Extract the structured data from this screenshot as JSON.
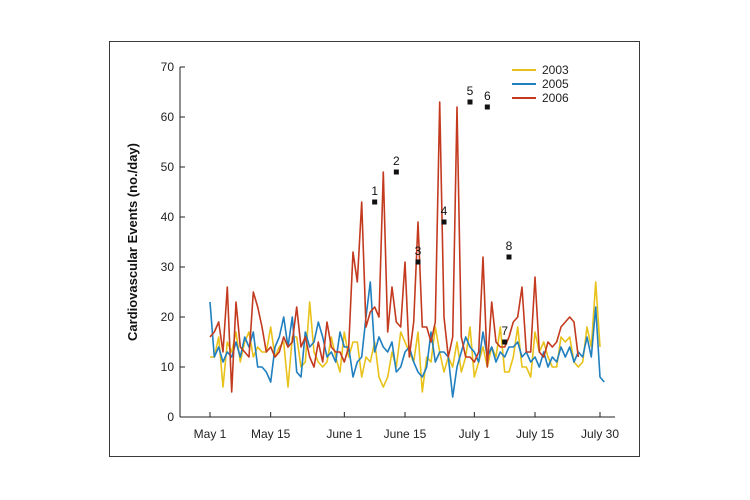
{
  "chart_data": {
    "type": "line",
    "title": "",
    "xlabel": "",
    "ylabel": "Cardiovascular Events (no./day)",
    "ylim": [
      0,
      70
    ],
    "yticks": [
      0,
      10,
      20,
      30,
      40,
      50,
      60,
      70
    ],
    "xlim_days": [
      0,
      90
    ],
    "xticks": [
      {
        "label": "May 1",
        "day": 0
      },
      {
        "label": "May 15",
        "day": 14
      },
      {
        "label": "June 1",
        "day": 31
      },
      {
        "label": "June 15",
        "day": 45
      },
      {
        "label": "July 1",
        "day": 61
      },
      {
        "label": "July 15",
        "day": 75
      },
      {
        "label": "July 30",
        "day": 90
      }
    ],
    "grid": false,
    "legend_position": "top-right",
    "series": [
      {
        "name": "2003",
        "color": "#e8c21a",
        "values": [
          12,
          12,
          16,
          6,
          15,
          13,
          17,
          11,
          15,
          17,
          12,
          14,
          13,
          13,
          18,
          12,
          14,
          15,
          6,
          16,
          16,
          10,
          11,
          23,
          13,
          11,
          10,
          11,
          16,
          12,
          9,
          17,
          12,
          15,
          15,
          8,
          12,
          11,
          15,
          8,
          6,
          8,
          13,
          10,
          17,
          15,
          13,
          11,
          17,
          5,
          12,
          11,
          18,
          13,
          9,
          12,
          10,
          15,
          9,
          12,
          18,
          8,
          11,
          14,
          10,
          14,
          12,
          18,
          9,
          9,
          12,
          18,
          10,
          10,
          8,
          17,
          13,
          15,
          12,
          10,
          10,
          16,
          15,
          16,
          11,
          10,
          11,
          18,
          14,
          27,
          14
        ]
      },
      {
        "name": "2005",
        "color": "#1f7fbf",
        "values": [
          23,
          12,
          14,
          11,
          13,
          12,
          15,
          12,
          16,
          14,
          17,
          10,
          10,
          9,
          7,
          14,
          16,
          20,
          14,
          20,
          9,
          8,
          17,
          14,
          15,
          19,
          16,
          12,
          13,
          11,
          17,
          14,
          14,
          8,
          11,
          12,
          20,
          27,
          13,
          16,
          14,
          13,
          15,
          9,
          10,
          13,
          14,
          11,
          9,
          8,
          10,
          17,
          11,
          13,
          13,
          12,
          4,
          10,
          13,
          16,
          14,
          13,
          11,
          17,
          12,
          14,
          11,
          13,
          12,
          14,
          14,
          15,
          12,
          13,
          11,
          12,
          10,
          13,
          10,
          12,
          11,
          14,
          12,
          14,
          11,
          13,
          12,
          16,
          12,
          22,
          8,
          7
        ]
      },
      {
        "name": "2006",
        "color": "#c33a1f",
        "values": [
          16,
          17,
          19,
          13,
          26,
          5,
          23,
          14,
          13,
          12,
          25,
          22,
          18,
          13,
          14,
          12,
          13,
          16,
          14,
          15,
          22,
          14,
          16,
          12,
          10,
          15,
          11,
          19,
          14,
          13,
          13,
          11,
          14,
          33,
          27,
          43,
          18,
          21,
          22,
          20,
          49,
          17,
          26,
          19,
          18,
          31,
          12,
          19,
          39,
          18,
          18,
          15,
          19,
          63,
          20,
          12,
          16,
          62,
          16,
          12,
          12,
          11,
          13,
          32,
          10,
          23,
          15,
          14,
          14,
          16,
          19,
          20,
          26,
          13,
          13,
          28,
          13,
          12,
          15,
          14,
          15,
          18,
          19,
          20,
          19,
          12
        ]
      }
    ],
    "series_days": {
      "2003": "0..90",
      "2005": "0..91",
      "2006": "0..85"
    },
    "annotations": [
      {
        "label": "1",
        "series": "2006",
        "day": 38,
        "value": 43
      },
      {
        "label": "2",
        "series": "2006",
        "day": 43,
        "value": 49
      },
      {
        "label": "3",
        "series": "2006",
        "day": 48,
        "value": 31
      },
      {
        "label": "4",
        "series": "2006",
        "day": 54,
        "value": 39
      },
      {
        "label": "5",
        "series": "2006",
        "day": 60,
        "value": 63
      },
      {
        "label": "6",
        "series": "2006",
        "day": 64,
        "value": 62
      },
      {
        "label": "7",
        "series": "2006",
        "day": 68,
        "value": 15
      },
      {
        "label": "8",
        "series": "2006",
        "day": 69,
        "value": 32
      }
    ]
  }
}
